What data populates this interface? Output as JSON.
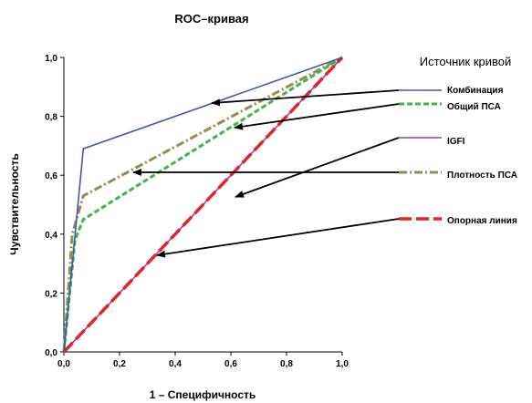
{
  "chart_data": {
    "type": "line",
    "title": "ROC–кривая",
    "xlabel": "1 – Специфичность",
    "ylabel": "Чувствительность",
    "xlim": [
      0,
      1
    ],
    "ylim": [
      0,
      1
    ],
    "x_ticks": [
      "0,0",
      "0,2",
      "0,4",
      "0,6",
      "0,8",
      "1,0"
    ],
    "y_ticks": [
      "0,0",
      "0,2",
      "0,4",
      "0,6",
      "0,8",
      "1,0"
    ],
    "grid": false,
    "legend_title": "Источник кривой",
    "legend_position": "right",
    "series": [
      {
        "name": "Комбинация",
        "color": "#3a5ba8",
        "style": "solid",
        "points": [
          [
            0,
            0
          ],
          [
            0.07,
            0.69
          ],
          [
            1,
            1
          ]
        ]
      },
      {
        "name": "Общий ПСА",
        "color": "#3fb54a",
        "style": "dashed",
        "points": [
          [
            0,
            0
          ],
          [
            0.04,
            0.38
          ],
          [
            0.07,
            0.45
          ],
          [
            1,
            1
          ]
        ]
      },
      {
        "name": "IGFI",
        "color": "#9b3fa0",
        "style": "solid",
        "points": [
          [
            0,
            0
          ],
          [
            1,
            1
          ]
        ]
      },
      {
        "name": "Плотность ПСА",
        "color": "#9a8a4c",
        "style": "dashdot",
        "points": [
          [
            0,
            0
          ],
          [
            0.03,
            0.4
          ],
          [
            0.07,
            0.53
          ],
          [
            1,
            1
          ]
        ]
      },
      {
        "name": "Опорная линия",
        "color": "#e3222a",
        "style": "longdash",
        "points": [
          [
            0,
            0
          ],
          [
            1,
            1
          ]
        ]
      }
    ]
  }
}
